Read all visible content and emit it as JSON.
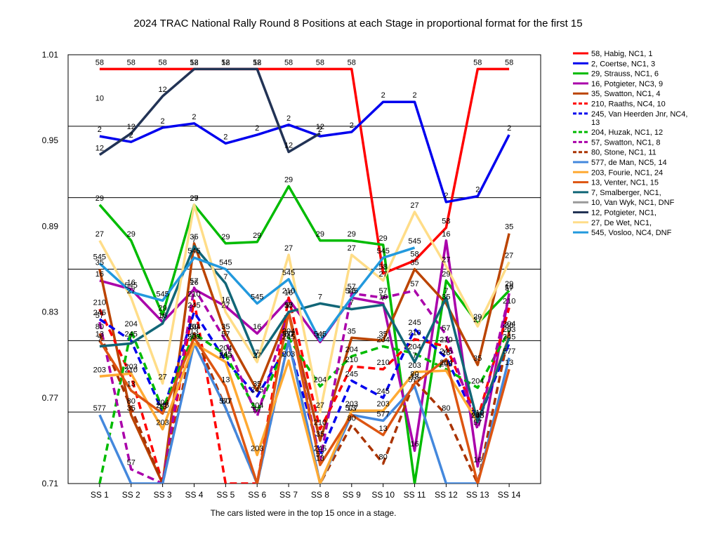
{
  "chart_data": {
    "type": "line",
    "title": "2024 TRAC National Rally Round 8  Positions at each Stage in proportional format for the first 15",
    "footnote": "The cars listed were in the top 15 once in a stage.",
    "xlabel": "",
    "ylabel": "",
    "categories": [
      "SS 1",
      "SS 2",
      "SS 3",
      "SS 4",
      "SS 5",
      "SS 6",
      "SS 7",
      "SS 8",
      "SS 9",
      "SS 10",
      "SS 11",
      "SS 12",
      "SS 13",
      "SS 14"
    ],
    "ylim": [
      0.71,
      1.01
    ],
    "yticks": [
      "0.71",
      "0.77",
      "0.83",
      "0.89",
      "0.95",
      "1.01"
    ],
    "grid": true,
    "legend_placement": "right",
    "series": [
      {
        "name": "58, Habig, NC1, 1",
        "label": "58",
        "color": "#ff0000",
        "dash": false,
        "values": [
          1.0,
          1.0,
          1.0,
          1.0,
          1.0,
          1.0,
          1.0,
          1.0,
          1.0,
          0.857,
          0.866,
          0.889,
          1.0,
          1.0
        ]
      },
      {
        "name": "2, Coertse, NC1, 3",
        "label": "2",
        "color": "#0000ee",
        "dash": false,
        "values": [
          0.953,
          0.949,
          0.959,
          0.962,
          0.948,
          0.954,
          0.961,
          0.953,
          0.956,
          0.977,
          0.977,
          0.907,
          0.911,
          0.954
        ]
      },
      {
        "name": "29, Strauss, NC1, 6",
        "label": "29",
        "color": "#00bb00",
        "dash": false,
        "values": [
          0.905,
          0.88,
          0.828,
          0.905,
          0.878,
          0.879,
          0.918,
          0.88,
          0.88,
          0.877,
          0.71,
          0.852,
          0.822,
          0.845
        ]
      },
      {
        "name": "16, Potgieter, NC3, 9",
        "label": "16",
        "color": "#aa00aa",
        "dash": false,
        "values": [
          0.852,
          0.846,
          0.823,
          0.846,
          0.834,
          0.815,
          0.839,
          0.809,
          0.84,
          0.836,
          0.733,
          0.88,
          0.722,
          0.843
        ]
      },
      {
        "name": "35, Swatton, NC1, 4",
        "label": "35",
        "color": "#bb4400",
        "dash": false,
        "values": [
          0.86,
          0.758,
          0.71,
          0.878,
          0.815,
          0.775,
          0.83,
          0.74,
          0.812,
          0.81,
          0.86,
          0.836,
          0.793,
          0.885
        ]
      },
      {
        "name": "210, Raaths, NC4, 10",
        "label": "210",
        "color": "#ff0000",
        "dash": true,
        "values": [
          0.832,
          0.785,
          0.71,
          0.838,
          0.71,
          0.71,
          0.84,
          0.748,
          0.792,
          0.79,
          0.811,
          0.806,
          0.755,
          0.833
        ]
      },
      {
        "name": "245, Van Heerden Jnr, NC4, 13",
        "label": "245",
        "color": "#0000ee",
        "dash": true,
        "values": [
          0.825,
          0.81,
          0.76,
          0.83,
          0.796,
          0.771,
          0.808,
          0.73,
          0.782,
          0.77,
          0.818,
          0.798,
          0.753,
          0.808
        ]
      },
      {
        "name": "204, Huzak, NC1, 12",
        "label": "204",
        "color": "#00bb00",
        "dash": true,
        "values": [
          0.71,
          0.817,
          0.762,
          0.815,
          0.8,
          0.76,
          0.812,
          0.778,
          0.799,
          0.806,
          0.801,
          0.79,
          0.777,
          0.817
        ]
      },
      {
        "name": "57, Swatton, NC1, 8",
        "label": "57",
        "color": "#aa00aa",
        "dash": true,
        "values": [
          0.823,
          0.72,
          0.71,
          0.847,
          0.81,
          0.757,
          0.83,
          0.726,
          0.843,
          0.84,
          0.845,
          0.814,
          0.748,
          0.842
        ]
      },
      {
        "name": "80, Stone, NC1, 11",
        "label": "80",
        "color": "#aa3300",
        "dash": true,
        "values": [
          0.815,
          0.763,
          0.71,
          0.815,
          0.763,
          0.71,
          0.81,
          0.71,
          0.751,
          0.724,
          0.782,
          0.758,
          0.71,
          0.816
        ]
      },
      {
        "name": "577, de Man, NC5, 14",
        "label": "577",
        "color": "#4488dd",
        "dash": false,
        "values": [
          0.758,
          0.71,
          0.71,
          0.808,
          0.763,
          0.71,
          0.81,
          0.71,
          0.758,
          0.754,
          0.778,
          0.71,
          0.71,
          0.798
        ]
      },
      {
        "name": "203, Fourie, NC1, 24",
        "label": "203",
        "color": "#ffaa33",
        "dash": false,
        "values": [
          0.785,
          0.787,
          0.748,
          0.808,
          0.795,
          0.73,
          0.796,
          0.71,
          0.761,
          0.761,
          0.788,
          0.789,
          0.753,
          0.813
        ]
      },
      {
        "name": "13, Venter, NC1, 15",
        "label": "13",
        "color": "#dd5511",
        "dash": false,
        "values": [
          0.81,
          0.775,
          0.759,
          0.812,
          0.778,
          0.71,
          0.83,
          0.723,
          0.758,
          0.744,
          0.78,
          0.797,
          0.71,
          0.79
        ]
      },
      {
        "name": "7, Smalberger, NC1,",
        "label": "7",
        "color": "#116677",
        "dash": false,
        "values": [
          0.806,
          0.808,
          0.822,
          0.876,
          0.85,
          0.797,
          0.83,
          0.836,
          0.832,
          0.835,
          0.795,
          0.84,
          0.753,
          0.812
        ]
      },
      {
        "name": "10, Van Wyk, NC1,  DNF",
        "label": "10",
        "color": "#999999",
        "dash": false,
        "values": [
          0.975,
          null,
          null,
          null,
          null,
          null,
          null,
          null,
          null,
          null,
          null,
          null,
          null,
          null
        ]
      },
      {
        "name": "12, Potgieter, NC1,",
        "label": "12",
        "color": "#223355",
        "dash": false,
        "values": [
          0.94,
          0.955,
          0.981,
          1.0,
          1.0,
          1.0,
          0.942,
          0.955,
          null,
          null,
          null,
          null,
          null,
          null
        ]
      },
      {
        "name": "27, De Wet, NC1,",
        "label": "27",
        "color": "#ffdd88",
        "dash": false,
        "values": [
          0.88,
          0.84,
          0.78,
          0.905,
          0.83,
          0.795,
          0.87,
          0.76,
          0.87,
          0.852,
          0.9,
          0.862,
          0.82,
          0.865
        ]
      },
      {
        "name": "545, Vosloo, NC4,  DNF",
        "label": "545",
        "color": "#2299dd",
        "dash": false,
        "values": [
          0.864,
          0.844,
          0.838,
          0.868,
          0.86,
          0.836,
          0.853,
          0.81,
          0.84,
          0.868,
          0.875,
          null,
          null,
          null
        ]
      }
    ]
  }
}
